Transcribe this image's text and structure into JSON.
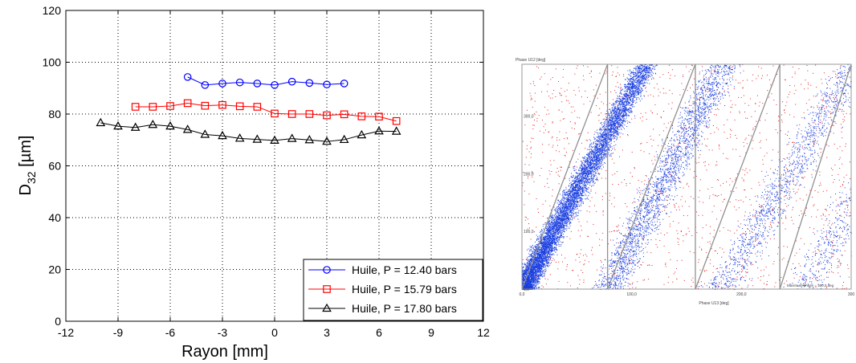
{
  "chart_data": [
    {
      "type": "line",
      "ylabel_main": "D",
      "ylabel_sub": "32",
      "ylabel_unit": " [µm]",
      "xlabel": "Rayon [mm]",
      "xlim": [
        -12,
        12
      ],
      "ylim": [
        0,
        120
      ],
      "x_ticks": [
        "-12",
        "-9",
        "-6",
        "-3",
        "0",
        "3",
        "6",
        "9",
        "12"
      ],
      "y_ticks": [
        "0",
        "20",
        "40",
        "60",
        "80",
        "100",
        "120"
      ],
      "grid": true,
      "legend_position": "bottom-right",
      "series": [
        {
          "name": "Huile, P = 12.40 bars",
          "color": "#0000ff",
          "marker": "circle",
          "x": [
            -5,
            -4,
            -3,
            -2,
            -1,
            0,
            1,
            2,
            3,
            4
          ],
          "y": [
            94.3,
            91.2,
            91.8,
            92.2,
            91.8,
            91.2,
            92.5,
            92.0,
            91.4,
            91.8
          ]
        },
        {
          "name": "Huile, P = 15.79 bars",
          "color": "#ff0000",
          "marker": "square",
          "x": [
            -8,
            -7,
            -6,
            -5,
            -4,
            -3,
            -2,
            -1,
            0,
            1,
            2,
            3,
            4,
            5,
            6,
            7
          ],
          "y": [
            82.8,
            82.8,
            83.1,
            84.2,
            83.2,
            83.5,
            83.0,
            82.8,
            80.2,
            80.0,
            80.0,
            79.5,
            79.9,
            79.1,
            79.0,
            77.3
          ]
        },
        {
          "name": "Huile, P = 17.80 bars",
          "color": "#000000",
          "marker": "triangle",
          "x": [
            -10,
            -9,
            -8,
            -7,
            -6,
            -5,
            -4,
            -3,
            -2,
            -1,
            0,
            1,
            2,
            3,
            4,
            5,
            6,
            7
          ],
          "y": [
            76.6,
            75.3,
            74.8,
            75.9,
            75.3,
            74.0,
            72.1,
            71.6,
            70.6,
            70.2,
            69.8,
            70.5,
            70.0,
            69.4,
            70.1,
            71.9,
            73.4,
            73.3
          ]
        }
      ]
    },
    {
      "type": "scatter",
      "ylabel": "Phase U12 [deg]",
      "xlabel": "Phase U13 [deg]",
      "xlim": [
        0,
        300
      ],
      "ylim": [
        0,
        390
      ],
      "x_ticks": [
        "0,0",
        "100,0",
        "200,0",
        "300"
      ],
      "y_ticks": [
        "0,0",
        "100,0",
        "200,0",
        "300,0"
      ],
      "annotation": "Maximum phase = 360,0 deg",
      "colors": {
        "valid": "#1a3fe0",
        "rejected": "#e62020",
        "guide": "#909090",
        "frame": "#9a9a9a"
      },
      "bands": [
        {
          "color_key": "valid",
          "count": 8000,
          "slope": 3.45,
          "intercept": 0,
          "width": 16
        },
        {
          "color_key": "valid",
          "count": 2200,
          "slope": 3.7,
          "intercept": -290,
          "width": 24
        },
        {
          "color_key": "valid",
          "count": 1300,
          "slope": 3.2,
          "intercept": -580,
          "width": 26
        },
        {
          "color_key": "valid",
          "count": 900,
          "slope": 3.3,
          "intercept": -850,
          "width": 28
        }
      ],
      "background_points": {
        "color_key": "rejected",
        "count": 1600
      },
      "guide_lines": [
        {
          "x": [
            0,
            78
          ],
          "y": [
            0,
            390
          ]
        },
        {
          "x": [
            78,
            158
          ],
          "y": [
            0,
            390
          ]
        },
        {
          "x": [
            158,
            235
          ],
          "y": [
            0,
            390
          ]
        },
        {
          "x": [
            235,
            300
          ],
          "y": [
            0,
            390
          ]
        }
      ],
      "vertical_marks": [
        78,
        158,
        235
      ]
    }
  ]
}
